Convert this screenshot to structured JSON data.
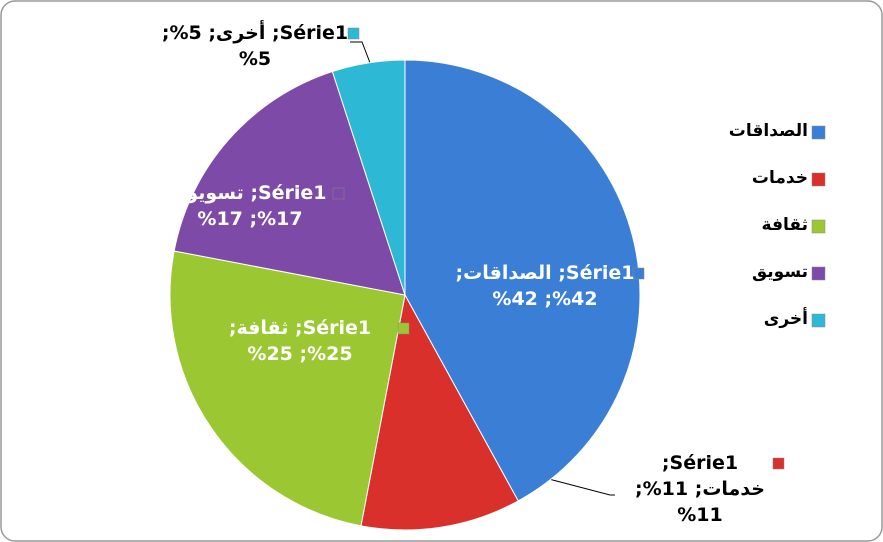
{
  "chart_data": {
    "type": "pie",
    "series": [
      {
        "name": "Série1",
        "values": [
          42,
          11,
          25,
          17,
          5
        ],
        "value_labels": [
          "Série1; الصداقات; 42%; 42%",
          "Série1; خدمات; 11%; 11%",
          "Série1; ثقافة; 25%; 25%",
          "Série1; تسويق; 17%; 17%",
          "Série1; أخرى; 5%; 5%"
        ]
      }
    ],
    "categories": [
      "الصداقات",
      "خدمات",
      "ثقافة",
      "تسويق",
      "أخرى"
    ],
    "colors": [
      "#3a7fd5",
      "#d9302c",
      "#9bc832",
      "#7d4aa8",
      "#2db9d6"
    ],
    "legend": "right"
  }
}
